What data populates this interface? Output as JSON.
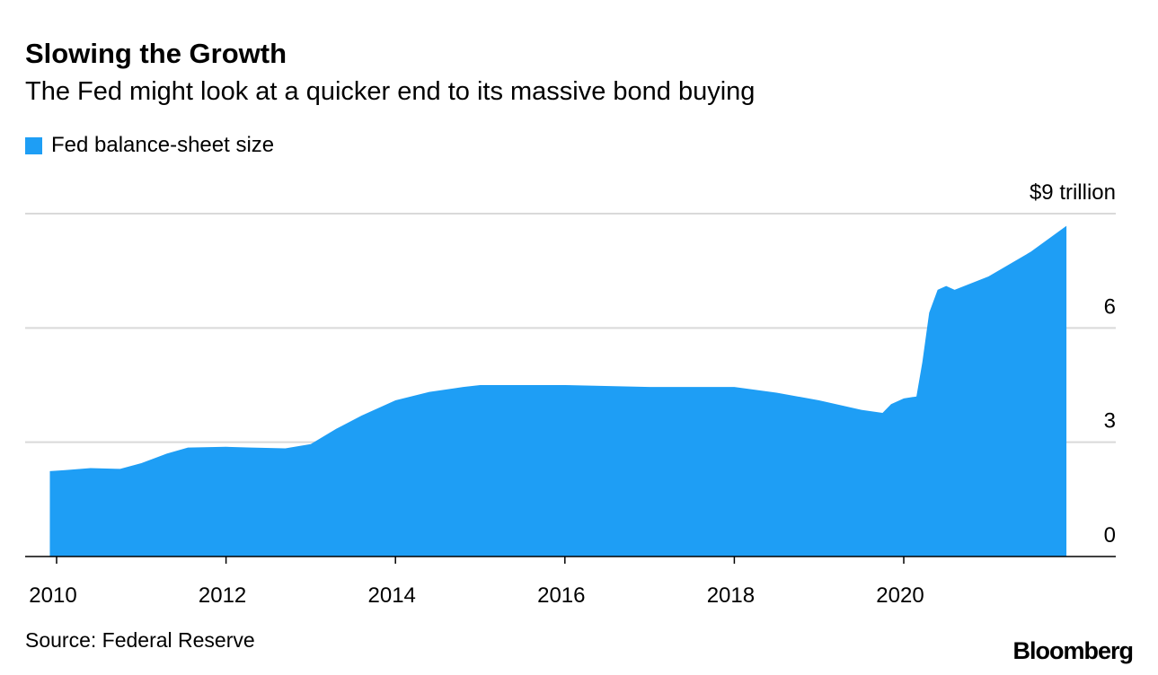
{
  "chart_data": {
    "type": "area",
    "title": "Slowing the Growth",
    "subtitle": "The Fed might look at a quicker end to its massive bond buying",
    "legend": [
      {
        "name": "Fed balance-sheet size",
        "color": "#1e9ef5"
      }
    ],
    "legend_placement": "top-left",
    "xlabel": "",
    "ylabel": "",
    "xlim": [
      2009.6,
      2022.5
    ],
    "ylim": [
      0,
      9
    ],
    "x_ticks": [
      2010,
      2012,
      2014,
      2016,
      2018,
      2020
    ],
    "x_tick_labels": [
      "2010",
      "2012",
      "2014",
      "2016",
      "2018",
      "2020"
    ],
    "y_ticks": [
      0,
      3,
      6,
      9
    ],
    "y_tick_labels": [
      "0",
      "3",
      "6",
      "$9 trillion"
    ],
    "grid": true,
    "series": [
      {
        "name": "Fed balance-sheet size",
        "x": [
          2009.92,
          2010.1,
          2010.4,
          2010.75,
          2011.0,
          2011.3,
          2011.55,
          2012.0,
          2012.3,
          2012.7,
          2013.0,
          2013.3,
          2013.6,
          2014.0,
          2014.4,
          2014.8,
          2015.0,
          2016.0,
          2017.0,
          2018.0,
          2018.5,
          2019.0,
          2019.5,
          2019.75,
          2019.85,
          2020.0,
          2020.15,
          2020.22,
          2020.3,
          2020.4,
          2020.5,
          2020.6,
          2021.0,
          2021.5,
          2021.92
        ],
        "values": [
          2.24,
          2.27,
          2.32,
          2.3,
          2.45,
          2.7,
          2.86,
          2.88,
          2.86,
          2.84,
          2.95,
          3.35,
          3.7,
          4.1,
          4.32,
          4.45,
          4.5,
          4.5,
          4.45,
          4.45,
          4.3,
          4.1,
          3.85,
          3.77,
          4.0,
          4.15,
          4.2,
          5.1,
          6.4,
          7.0,
          7.1,
          7.0,
          7.35,
          8.0,
          8.68
        ]
      }
    ],
    "source": "Source: Federal Reserve",
    "brand": "Bloomberg"
  }
}
